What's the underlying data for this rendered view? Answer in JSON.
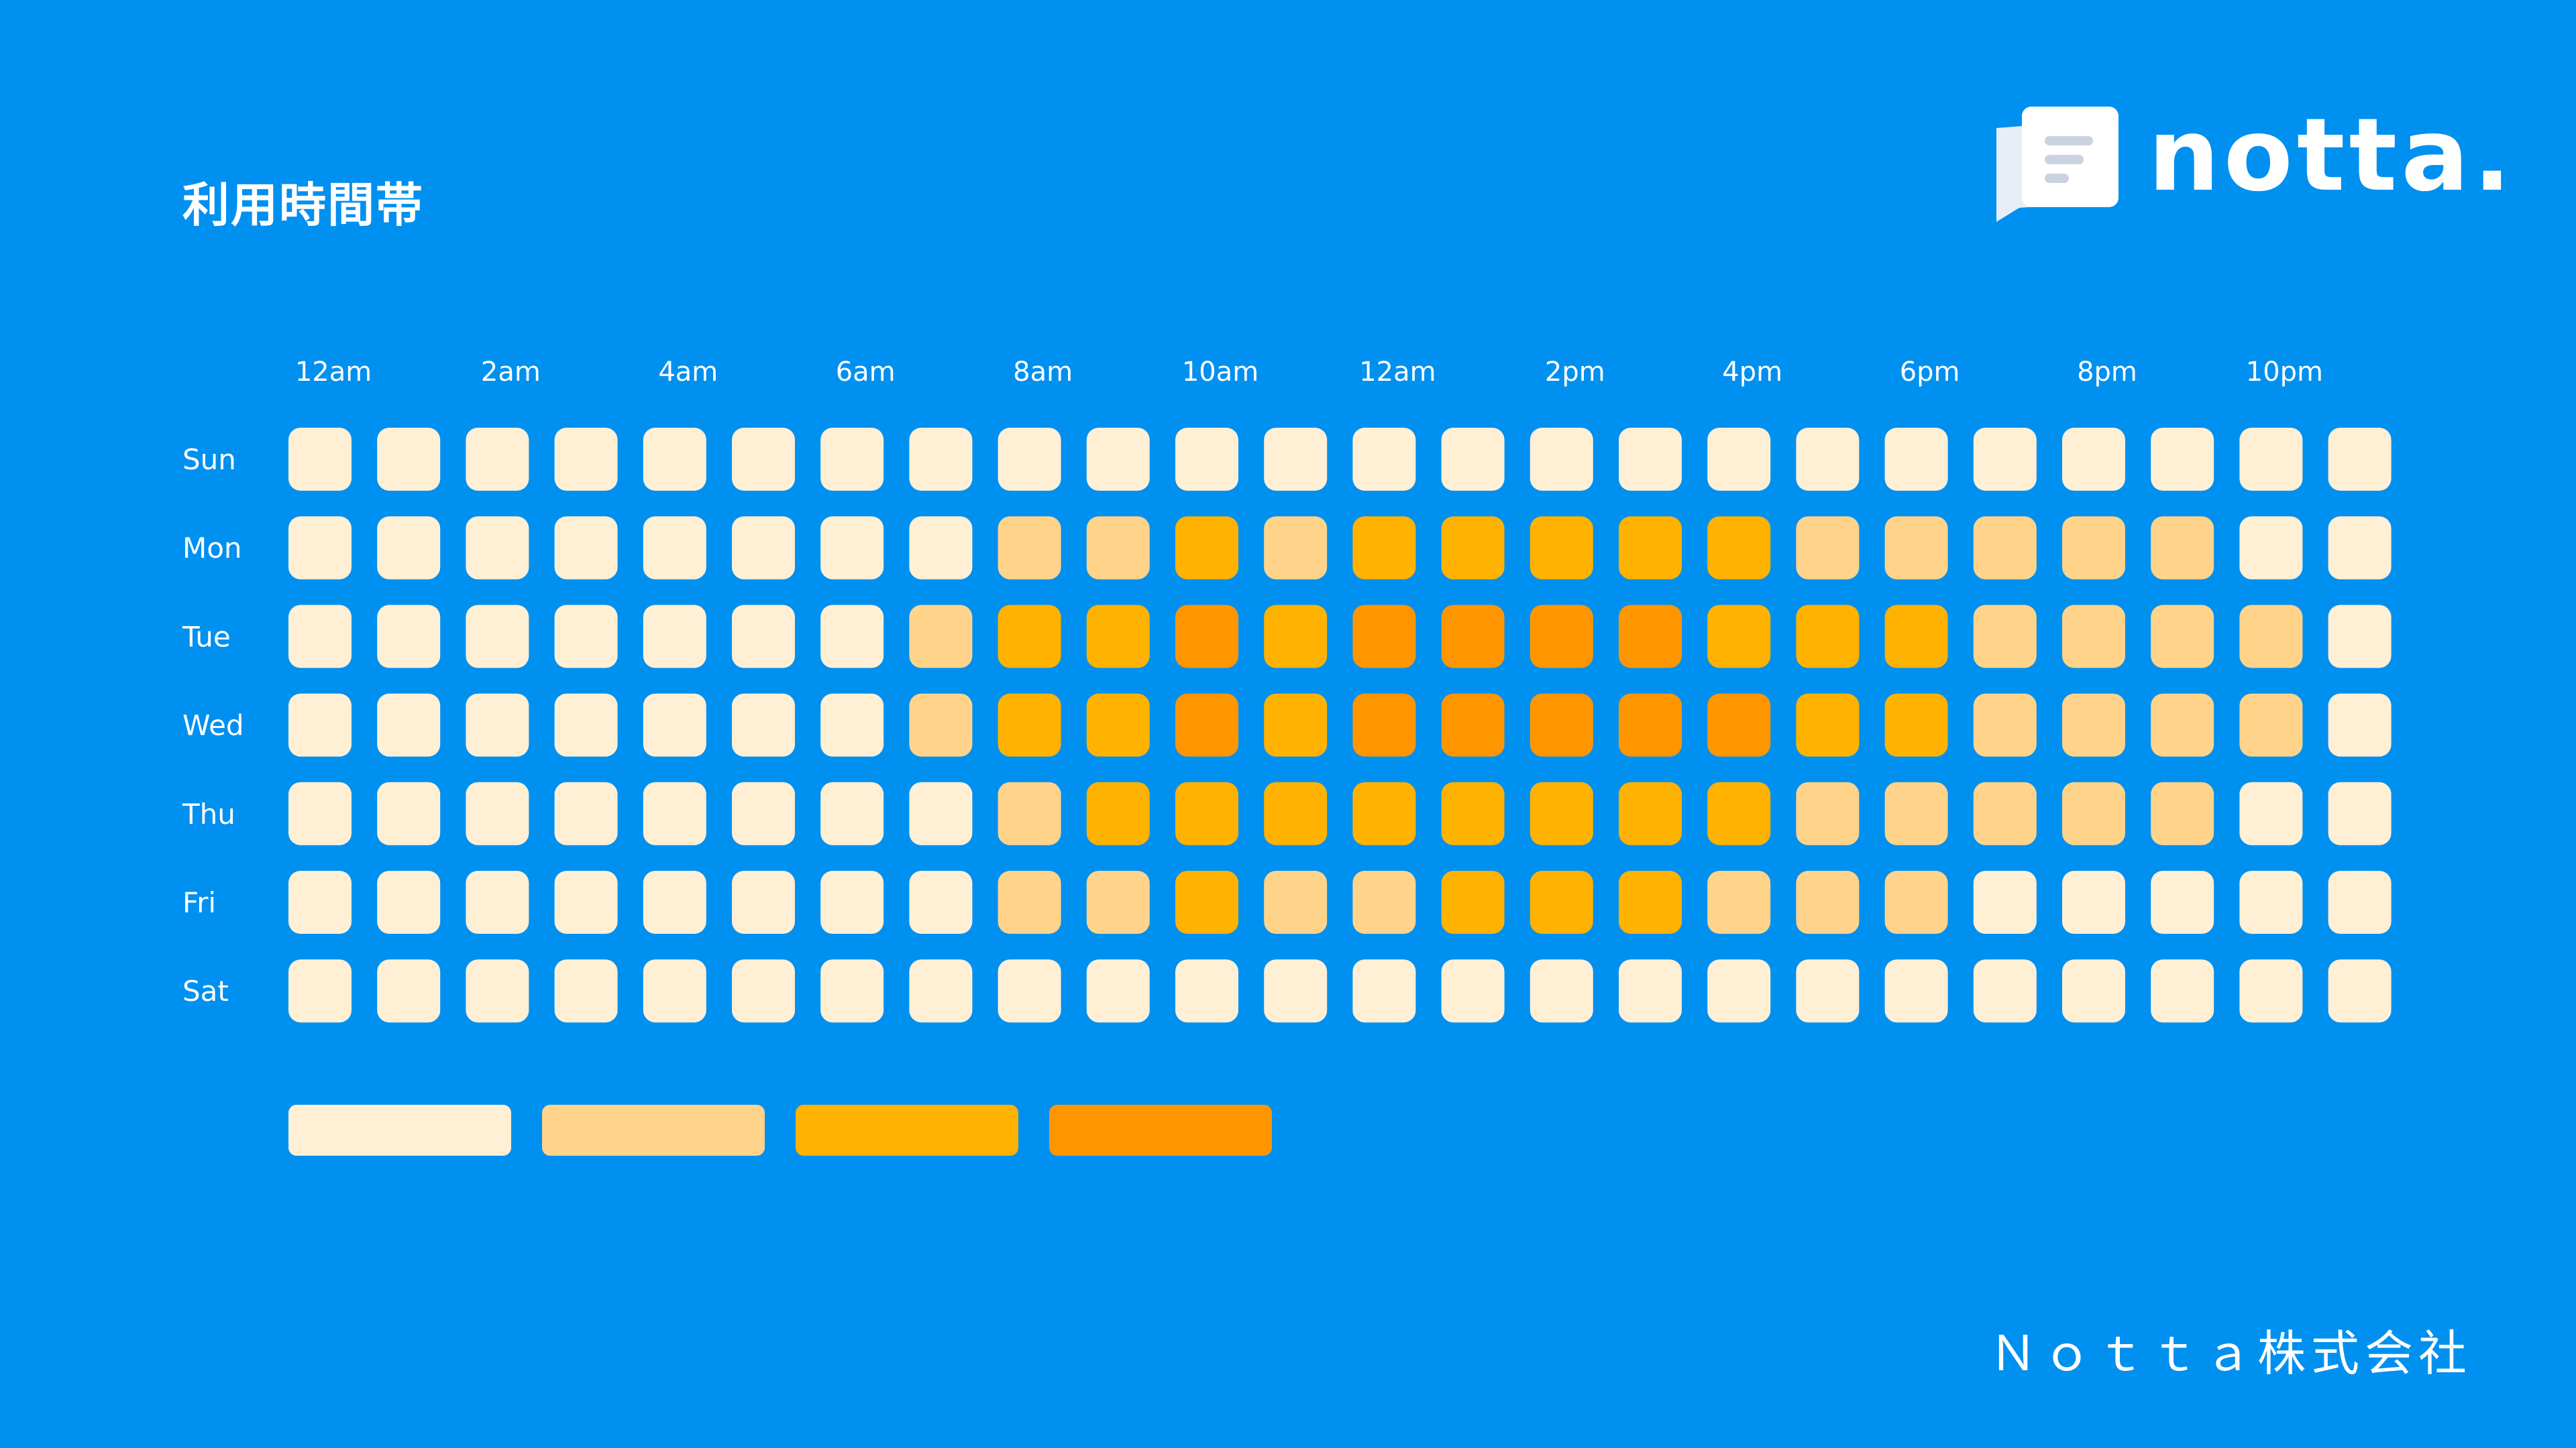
{
  "header": {
    "title": "利用時間帯"
  },
  "logo": {
    "text": "notta."
  },
  "footer": {
    "company": "Ｎｏｔｔａ株式会社"
  },
  "colors": {
    "background": "#0090f0",
    "levels": [
      "#ffefd5",
      "#ffd38a",
      "#ffb200",
      "#ff9600"
    ]
  },
  "chart_data": {
    "type": "heatmap",
    "title": "",
    "x_tick_labels": [
      "12am",
      "2am",
      "4am",
      "6am",
      "8am",
      "10am",
      "12am",
      "2pm",
      "4pm",
      "6pm",
      "8pm",
      "10pm"
    ],
    "rows": [
      "Sun",
      "Mon",
      "Tue",
      "Wed",
      "Thu",
      "Fri",
      "Sat"
    ],
    "hours": 24,
    "levels": 4,
    "values": [
      [
        0,
        0,
        0,
        0,
        0,
        0,
        0,
        0,
        0,
        0,
        0,
        0,
        0,
        0,
        0,
        0,
        0,
        0,
        0,
        0,
        0,
        0,
        0,
        0
      ],
      [
        0,
        0,
        0,
        0,
        0,
        0,
        0,
        0,
        1,
        1,
        2,
        1,
        2,
        2,
        2,
        2,
        2,
        1,
        1,
        1,
        1,
        1,
        0,
        0
      ],
      [
        0,
        0,
        0,
        0,
        0,
        0,
        0,
        1,
        2,
        2,
        3,
        2,
        3,
        3,
        3,
        3,
        2,
        2,
        2,
        1,
        1,
        1,
        1,
        0
      ],
      [
        0,
        0,
        0,
        0,
        0,
        0,
        0,
        1,
        2,
        2,
        3,
        2,
        3,
        3,
        3,
        3,
        3,
        2,
        2,
        1,
        1,
        1,
        1,
        0
      ],
      [
        0,
        0,
        0,
        0,
        0,
        0,
        0,
        0,
        1,
        2,
        2,
        2,
        2,
        2,
        2,
        2,
        2,
        1,
        1,
        1,
        1,
        1,
        0,
        0
      ],
      [
        0,
        0,
        0,
        0,
        0,
        0,
        0,
        0,
        1,
        1,
        2,
        1,
        1,
        2,
        2,
        2,
        1,
        1,
        1,
        0,
        0,
        0,
        0,
        0
      ],
      [
        0,
        0,
        0,
        0,
        0,
        0,
        0,
        0,
        0,
        0,
        0,
        0,
        0,
        0,
        0,
        0,
        0,
        0,
        0,
        0,
        0,
        0,
        0,
        0
      ]
    ],
    "legend": [
      0,
      1,
      2,
      3
    ]
  }
}
